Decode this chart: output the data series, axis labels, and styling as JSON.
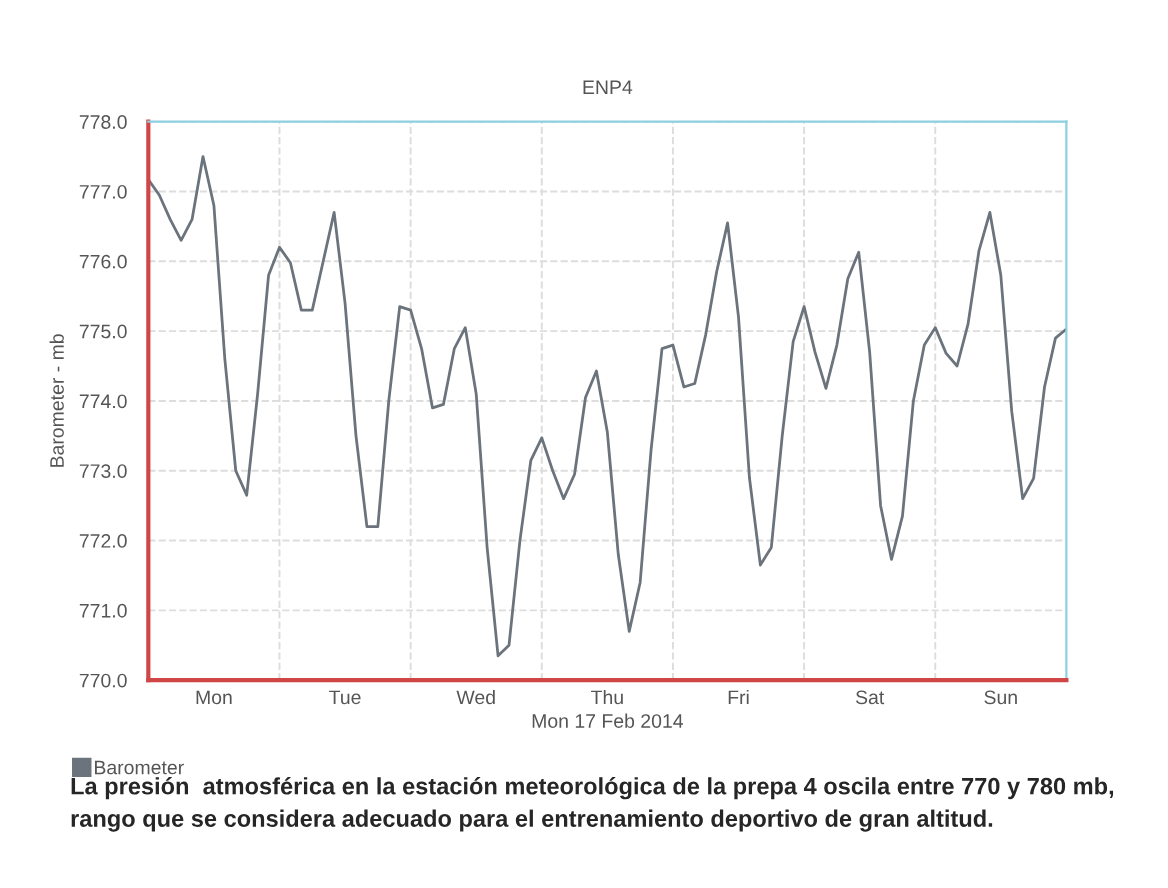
{
  "chart_data": {
    "type": "line",
    "title": "ENP4",
    "xlabel": "Mon 17 Feb 2014",
    "ylabel": "Barometer - mb",
    "annotations": [
      "La presión  atmosférica en la estación meteorológica de la prepa 4 oscila entre 770 y 780 mb, rango que se considera adecuado para el entrenamiento deportivo de gran altitud."
    ],
    "legend": "bottom",
    "grid": true,
    "line_style": "solid",
    "marker": "none",
    "ylim": [
      770,
      778
    ],
    "yticks": [
      {
        "value": 770,
        "label": "770.0"
      },
      {
        "value": 771,
        "label": "771.0"
      },
      {
        "value": 772,
        "label": "772.0"
      },
      {
        "value": 773,
        "label": "773.0"
      },
      {
        "value": 774,
        "label": "774.0"
      },
      {
        "value": 775,
        "label": "775.0"
      },
      {
        "value": 776,
        "label": "776.0"
      },
      {
        "value": 777,
        "label": "777.0"
      },
      {
        "value": 778,
        "label": "778.0"
      }
    ],
    "categories": [
      null,
      null,
      null,
      null,
      null,
      null,
      "Mon",
      null,
      null,
      null,
      null,
      null,
      null,
      null,
      null,
      null,
      null,
      null,
      "Tue",
      null,
      null,
      null,
      null,
      null,
      null,
      null,
      null,
      null,
      null,
      null,
      "Wed",
      null,
      null,
      null,
      null,
      null,
      null,
      null,
      null,
      null,
      null,
      null,
      "Thu",
      null,
      null,
      null,
      null,
      null,
      null,
      null,
      null,
      null,
      null,
      null,
      "Fri",
      null,
      null,
      null,
      null,
      null,
      null,
      null,
      null,
      null,
      null,
      null,
      "Sat",
      null,
      null,
      null,
      null,
      null,
      null,
      null,
      null,
      null,
      null,
      null,
      "Sun",
      null,
      null,
      null,
      null,
      null,
      null
    ],
    "series": [
      {
        "name": "Barometer",
        "color": "#6b737c",
        "values": [
          777.17,
          776.95,
          776.6,
          776.3,
          776.6,
          777.5,
          776.8,
          774.6,
          773.0,
          772.65,
          774.1,
          775.8,
          776.2,
          775.98,
          775.3,
          775.3,
          776.0,
          776.7,
          775.4,
          773.5,
          772.2,
          772.2,
          774.0,
          775.35,
          775.3,
          774.75,
          773.9,
          773.95,
          774.75,
          775.05,
          774.1,
          771.9,
          770.35,
          770.5,
          772.0,
          773.15,
          773.47,
          773.0,
          772.6,
          772.95,
          774.05,
          774.43,
          773.55,
          771.8,
          770.7,
          771.4,
          773.3,
          774.75,
          774.8,
          774.2,
          774.25,
          774.95,
          775.85,
          776.55,
          775.2,
          772.9,
          771.65,
          771.9,
          773.5,
          774.85,
          775.35,
          774.7,
          774.18,
          774.8,
          775.75,
          776.13,
          774.7,
          772.5,
          771.73,
          772.35,
          774.0,
          774.8,
          775.05,
          774.68,
          774.5,
          775.1,
          776.15,
          776.7,
          775.8,
          773.85,
          772.6,
          772.89,
          774.2,
          774.9,
          775.03
        ]
      }
    ]
  }
}
